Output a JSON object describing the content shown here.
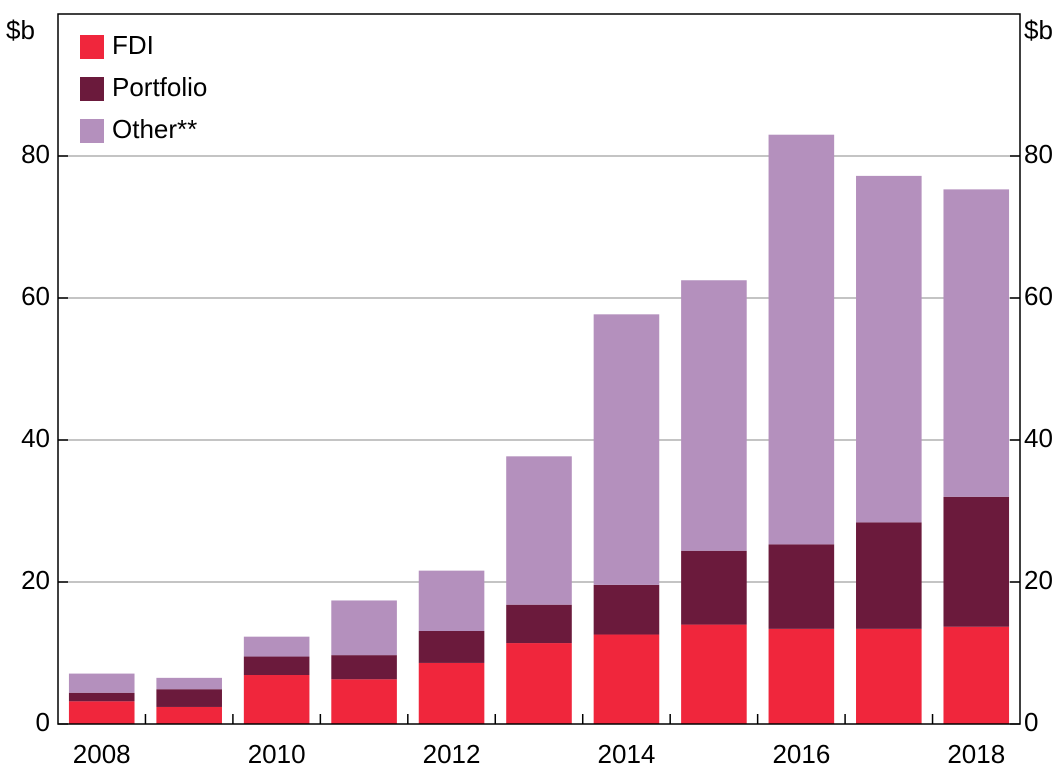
{
  "chart_data": {
    "type": "stacked_bar",
    "y_label": "$b",
    "y2_label": "$b",
    "categories": [
      "2008",
      null,
      "2010",
      null,
      "2012",
      null,
      "2014",
      null,
      "2016",
      null,
      "2018"
    ],
    "series": [
      {
        "name": "FDI",
        "color": "#f0263c",
        "values": [
          3.2,
          2.4,
          6.9,
          6.3,
          8.6,
          11.4,
          12.6,
          14.0,
          13.4,
          13.4,
          13.7
        ]
      },
      {
        "name": "Portfolio",
        "color": "#6b1a3c",
        "values": [
          1.2,
          2.5,
          2.6,
          3.4,
          4.5,
          5.4,
          7.0,
          10.4,
          11.9,
          15.0,
          18.3
        ]
      },
      {
        "name": "Other**",
        "color": "#b490bd",
        "values": [
          2.7,
          1.6,
          2.8,
          7.7,
          8.5,
          20.9,
          38.1,
          38.1,
          57.7,
          48.8,
          43.3
        ]
      }
    ],
    "ylim": [
      0,
      100
    ],
    "yticks": [
      0,
      20,
      40,
      60,
      80
    ],
    "y2lim": [
      0,
      100
    ],
    "y2ticks": [
      0,
      20,
      40,
      60,
      80
    ],
    "grid": true,
    "legend": "top-left"
  }
}
